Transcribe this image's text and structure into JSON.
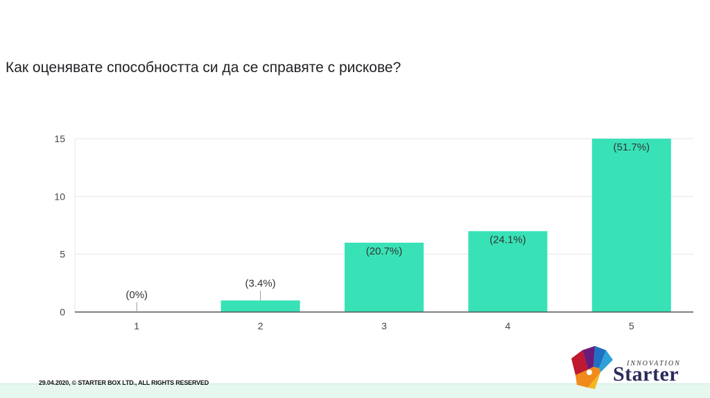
{
  "question": "Как оценявате способността си да се справяте с рискове?",
  "footer": "29.04.2020, © STARTER BOX LTD., ALL RIGHTS RESERVED",
  "logo": {
    "name": "Starter",
    "tagline": "INNOVATION",
    "icon": "starter-box-icon"
  },
  "colors": {
    "bar": "#38e2b6",
    "grid": "#e4e4e4",
    "axis": "#555555"
  },
  "chart_data": {
    "type": "bar",
    "categories": [
      "1",
      "2",
      "3",
      "4",
      "5"
    ],
    "values": [
      0,
      1,
      6,
      7,
      15
    ],
    "data_labels": [
      "(0%)",
      "(3.4%)",
      "(20.7%)",
      "(24.1%)",
      "(51.7%)"
    ],
    "yticks": [
      0,
      5,
      10,
      15
    ],
    "ylim": [
      0,
      15
    ],
    "grid": true
  }
}
